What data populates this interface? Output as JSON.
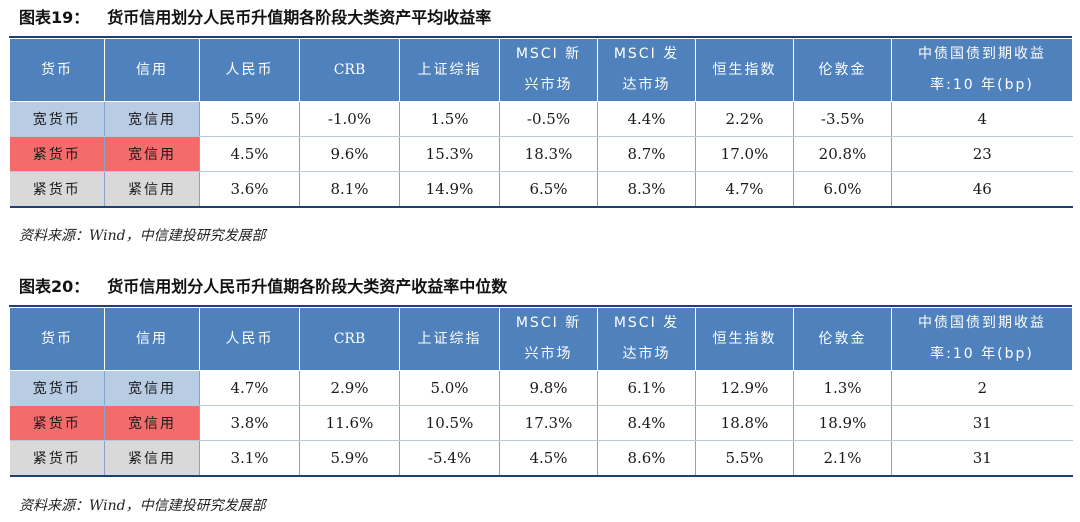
{
  "tables": [
    {
      "fig_num": "图表19：",
      "title": "货币信用划分人民币升值期各阶段大类资产平均收益率",
      "headers": {
        "currency": "货币",
        "credit": "信用",
        "rmb": "人民币",
        "crb": "CRB",
        "sh": "上证综指",
        "msci_em_1": "MSCI 新",
        "msci_em_2": "兴市场",
        "msci_dm_1": "MSCI 发",
        "msci_dm_2": "达市场",
        "hsi": "恒生指数",
        "gold": "伦敦金",
        "bond_1": "中债国债到期收益",
        "bond_2": "率:10 年(bp)"
      },
      "rows": [
        {
          "currency": "宽货币",
          "credit": "宽信用",
          "rmb": "5.5%",
          "crb": "-1.0%",
          "sh": "1.5%",
          "msci_em": "-0.5%",
          "msci_dm": "4.4%",
          "hsi": "2.2%",
          "gold": "-3.5%",
          "bond": "4"
        },
        {
          "currency": "紧货币",
          "credit": "宽信用",
          "rmb": "4.5%",
          "crb": "9.6%",
          "sh": "15.3%",
          "msci_em": "18.3%",
          "msci_dm": "8.7%",
          "hsi": "17.0%",
          "gold": "20.8%",
          "bond": "23"
        },
        {
          "currency": "紧货币",
          "credit": "紧信用",
          "rmb": "3.6%",
          "crb": "8.1%",
          "sh": "14.9%",
          "msci_em": "6.5%",
          "msci_dm": "8.3%",
          "hsi": "4.7%",
          "gold": "6.0%",
          "bond": "46"
        }
      ],
      "source": "资料来源：Wind，中信建投研究发展部"
    },
    {
      "fig_num": "图表20：",
      "title": "货币信用划分人民币升值期各阶段大类资产收益率中位数",
      "headers": {
        "currency": "货币",
        "credit": "信用",
        "rmb": "人民币",
        "crb": "CRB",
        "sh": "上证综指",
        "msci_em_1": "MSCI 新",
        "msci_em_2": "兴市场",
        "msci_dm_1": "MSCI 发",
        "msci_dm_2": "达市场",
        "hsi": "恒生指数",
        "gold": "伦敦金",
        "bond_1": "中债国债到期收益",
        "bond_2": "率:10 年(bp)"
      },
      "rows": [
        {
          "currency": "宽货币",
          "credit": "宽信用",
          "rmb": "4.7%",
          "crb": "2.9%",
          "sh": "5.0%",
          "msci_em": "9.8%",
          "msci_dm": "6.1%",
          "hsi": "12.9%",
          "gold": "1.3%",
          "bond": "2"
        },
        {
          "currency": "紧货币",
          "credit": "宽信用",
          "rmb": "3.8%",
          "crb": "11.6%",
          "sh": "10.5%",
          "msci_em": "17.3%",
          "msci_dm": "8.4%",
          "hsi": "18.8%",
          "gold": "18.9%",
          "bond": "31"
        },
        {
          "currency": "紧货币",
          "credit": "紧信用",
          "rmb": "3.1%",
          "crb": "5.9%",
          "sh": "-5.4%",
          "msci_em": "4.5%",
          "msci_dm": "8.6%",
          "hsi": "5.5%",
          "gold": "2.1%",
          "bond": "31"
        }
      ],
      "source": "资料来源：Wind，中信建投研究发展部"
    }
  ],
  "colors": {
    "header_bg": "#4f81bd",
    "wide_money": "#b8cce4",
    "tight_money_wide_credit": "#f36b6b",
    "tight_tight": "#d9d9d9",
    "rule": "#1f3f75"
  }
}
